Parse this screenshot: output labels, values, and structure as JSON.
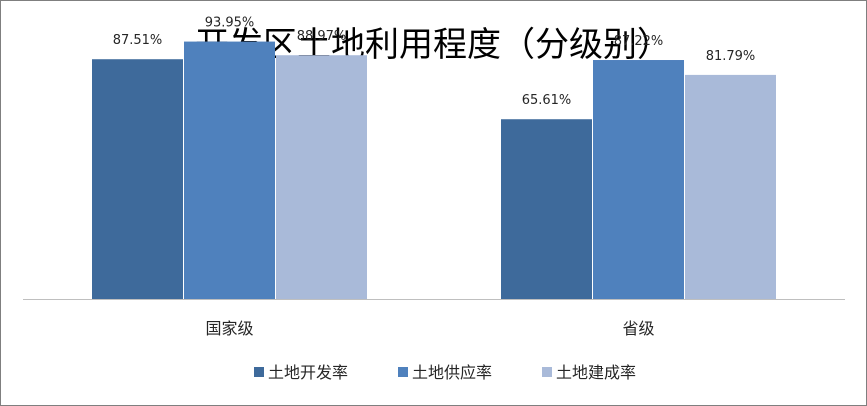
{
  "chart_data": {
    "type": "bar",
    "title": "开发区土地利用程度（分级别）",
    "xlabel": "",
    "ylabel": "",
    "categories": [
      "国家级",
      "省级"
    ],
    "series": [
      {
        "name": "土地开发率",
        "values": [
          87.51,
          65.61
        ],
        "labels": [
          "87.51%",
          "65.61%"
        ],
        "color": "#3e6a9b"
      },
      {
        "name": "土地供应率",
        "values": [
          93.95,
          87.22
        ],
        "labels": [
          "93.95%",
          "87.22%"
        ],
        "color": "#4f81bd"
      },
      {
        "name": "土地建成率",
        "values": [
          88.97,
          81.79
        ],
        "labels": [
          "88.97%",
          "81.79%"
        ],
        "color": "#a9bad9"
      }
    ],
    "ylim": [
      0,
      100
    ],
    "grid": false,
    "legend": "bottom"
  }
}
